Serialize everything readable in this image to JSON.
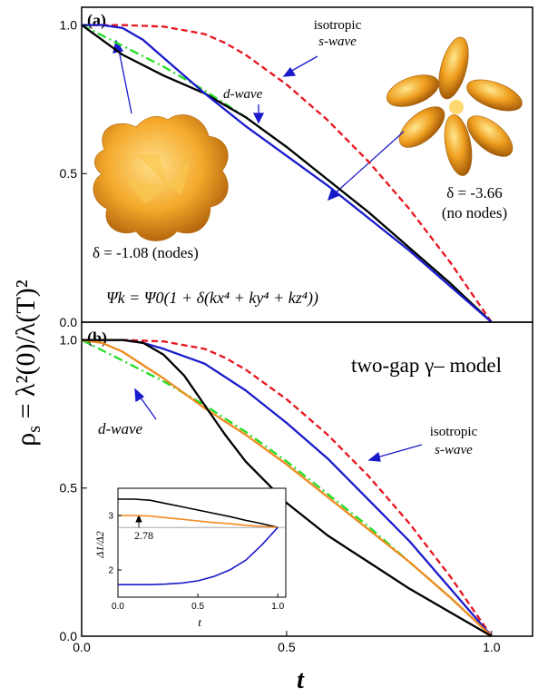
{
  "ylabel_base": "ρ",
  "ylabel_sub": "s",
  "ylabel_rest": " = λ²(0)/λ(T)²",
  "xlabel": "t",
  "chart_data": [
    {
      "panel": "(a)",
      "type": "line",
      "xlim": [
        0,
        1.1
      ],
      "ylim": [
        0,
        1.06
      ],
      "yticks": [
        "0.0",
        "0.5",
        "1.0"
      ],
      "annotations": {
        "isotropic_line1": "isotropic",
        "isotropic_line2": "s-wave",
        "dwave": "d-wave",
        "delta_nodes": "δ = -1.08 (nodes)",
        "delta_nonodes": "δ = -3.66",
        "no_nodes": "(no nodes)",
        "formula": "Ψk = Ψ0(1 + δ(kx⁴ + ky⁴ + kz⁴))"
      },
      "series": [
        {
          "color": "#e8141e",
          "style": "dash",
          "x": [
            0,
            0.1,
            0.2,
            0.3,
            0.35,
            0.4,
            0.5,
            0.6,
            0.7,
            0.8,
            0.9,
            0.95,
            1.0
          ],
          "y": [
            1.0,
            1.0,
            0.995,
            0.97,
            0.94,
            0.9,
            0.8,
            0.68,
            0.54,
            0.38,
            0.2,
            0.1,
            0
          ]
        },
        {
          "color": "#22dd22",
          "style": "dashdot",
          "x": [
            0,
            0.1,
            0.2,
            0.3,
            0.4,
            0.5,
            0.6,
            0.7,
            0.8,
            0.9,
            1.0
          ],
          "y": [
            1.0,
            0.93,
            0.86,
            0.78,
            0.69,
            0.59,
            0.48,
            0.37,
            0.25,
            0.13,
            0
          ]
        },
        {
          "color": "#000000",
          "style": "solid",
          "x": [
            0,
            0.1,
            0.2,
            0.3,
            0.4,
            0.5,
            0.6,
            0.7,
            0.8,
            0.9,
            1.0
          ],
          "y": [
            1.0,
            0.9,
            0.83,
            0.77,
            0.69,
            0.59,
            0.48,
            0.37,
            0.25,
            0.13,
            0
          ]
        },
        {
          "color": "#1a1acc",
          "style": "solid",
          "x": [
            0,
            0.05,
            0.1,
            0.15,
            0.2,
            0.3,
            0.4,
            0.5,
            0.6,
            0.7,
            0.8,
            0.9,
            1.0
          ],
          "y": [
            1.0,
            1.0,
            0.99,
            0.95,
            0.89,
            0.77,
            0.66,
            0.56,
            0.46,
            0.35,
            0.24,
            0.12,
            0
          ]
        }
      ]
    },
    {
      "panel": "(b)",
      "type": "line",
      "title": "two-gap γ– model",
      "xlim": [
        0,
        1.1
      ],
      "ylim": [
        0,
        1.06
      ],
      "xticks": [
        "0.0",
        "0.5",
        "1.0"
      ],
      "yticks": [
        "0.0",
        "0.5",
        "1.0"
      ],
      "annotations": {
        "isotropic_line1": "isotropic",
        "isotropic_line2": "s-wave",
        "dwave": "d-wave"
      },
      "series": [
        {
          "color": "#e8141e",
          "style": "dash",
          "x": [
            0,
            0.1,
            0.2,
            0.3,
            0.35,
            0.4,
            0.5,
            0.6,
            0.7,
            0.8,
            0.9,
            0.95,
            1.0
          ],
          "y": [
            1.0,
            1.0,
            0.995,
            0.97,
            0.94,
            0.9,
            0.8,
            0.68,
            0.54,
            0.38,
            0.2,
            0.1,
            0
          ]
        },
        {
          "color": "#22dd22",
          "style": "dashdot",
          "x": [
            0,
            0.1,
            0.2,
            0.3,
            0.4,
            0.5,
            0.6,
            0.7,
            0.8,
            0.9,
            1.0
          ],
          "y": [
            1.0,
            0.93,
            0.86,
            0.78,
            0.69,
            0.59,
            0.48,
            0.37,
            0.25,
            0.13,
            0
          ]
        },
        {
          "color": "#1a1acc",
          "style": "solid",
          "x": [
            0,
            0.1,
            0.15,
            0.2,
            0.3,
            0.4,
            0.5,
            0.6,
            0.7,
            0.8,
            0.9,
            1.0
          ],
          "y": [
            1.0,
            1.0,
            0.99,
            0.97,
            0.92,
            0.83,
            0.72,
            0.6,
            0.46,
            0.32,
            0.16,
            0
          ]
        },
        {
          "color": "#f08a1e",
          "style": "solid",
          "x": [
            0,
            0.05,
            0.1,
            0.2,
            0.3,
            0.4,
            0.5,
            0.6,
            0.7,
            0.8,
            0.9,
            1.0
          ],
          "y": [
            1.0,
            0.99,
            0.96,
            0.87,
            0.77,
            0.68,
            0.58,
            0.47,
            0.36,
            0.25,
            0.13,
            0
          ]
        },
        {
          "color": "#000000",
          "style": "solid",
          "x": [
            0,
            0.1,
            0.15,
            0.2,
            0.25,
            0.3,
            0.35,
            0.4,
            0.5,
            0.6,
            0.7,
            0.8,
            0.9,
            1.0
          ],
          "y": [
            1.0,
            1.0,
            0.99,
            0.95,
            0.88,
            0.78,
            0.68,
            0.59,
            0.45,
            0.34,
            0.25,
            0.16,
            0.08,
            0
          ]
        }
      ]
    },
    {
      "panel": "inset",
      "type": "line",
      "xlabel": "t",
      "ylabel": "Δ1/Δ2",
      "xlim": [
        0,
        1.05
      ],
      "ylim": [
        1.5,
        3.5
      ],
      "xticks": [
        "0.0",
        "0.5",
        "1.0"
      ],
      "yticks": [
        "2",
        "3"
      ],
      "reference_line": 2.78,
      "reference_label": "2.78",
      "series": [
        {
          "color": "#000000",
          "style": "solid",
          "x": [
            0,
            0.1,
            0.2,
            0.3,
            0.4,
            0.5,
            0.6,
            0.7,
            0.8,
            0.9,
            1.0
          ],
          "y": [
            3.3,
            3.3,
            3.28,
            3.22,
            3.16,
            3.1,
            3.04,
            2.98,
            2.91,
            2.85,
            2.78
          ]
        },
        {
          "color": "#f08a1e",
          "style": "solid",
          "x": [
            0,
            0.1,
            0.2,
            0.3,
            0.4,
            0.5,
            0.6,
            0.7,
            0.8,
            0.9,
            1.0
          ],
          "y": [
            3.0,
            3.0,
            2.99,
            2.96,
            2.93,
            2.9,
            2.87,
            2.85,
            2.82,
            2.8,
            2.78
          ]
        },
        {
          "color": "#1a1acc",
          "style": "solid",
          "x": [
            0,
            0.2,
            0.3,
            0.4,
            0.5,
            0.6,
            0.7,
            0.8,
            0.85,
            0.9,
            0.95,
            1.0
          ],
          "y": [
            1.73,
            1.73,
            1.74,
            1.76,
            1.8,
            1.88,
            2.0,
            2.18,
            2.32,
            2.46,
            2.62,
            2.78
          ]
        }
      ]
    }
  ]
}
